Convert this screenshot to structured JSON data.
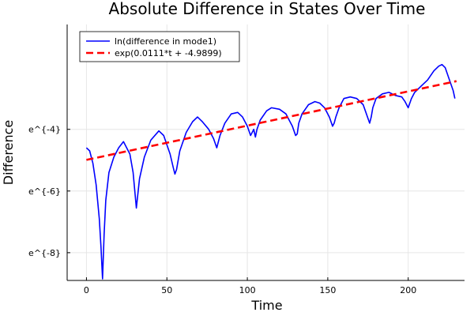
{
  "chart_data": {
    "type": "line",
    "title": "Absolute Difference in States Over Time",
    "xlabel": "Time",
    "ylabel": "Difference",
    "xlim": [
      -12,
      235
    ],
    "ylim": [
      -8.9,
      -0.6
    ],
    "xticks": [
      0,
      50,
      100,
      150,
      200
    ],
    "yticks": [
      -4,
      -6,
      -8
    ],
    "ytick_labels": [
      "e^{-4}",
      "e^{-6}",
      "e^{-8}"
    ],
    "grid": true,
    "legend_position": "top-left",
    "series": [
      {
        "name": "ln(difference in mode1)",
        "color": "#0000ff",
        "style": "solid",
        "x": [
          0,
          2,
          4,
          6,
          8,
          9,
          10,
          11,
          12,
          14,
          17,
          20,
          23,
          27,
          29,
          31,
          33,
          36,
          40,
          45,
          48,
          52,
          54,
          55,
          56,
          58,
          62,
          66,
          69,
          72,
          76,
          79,
          81,
          83,
          86,
          90,
          94,
          97,
          100,
          102,
          104,
          105,
          106,
          108,
          112,
          115,
          120,
          124,
          126,
          128,
          130,
          131,
          132,
          134,
          138,
          142,
          145,
          148,
          151,
          153,
          154,
          155,
          157,
          160,
          164,
          168,
          172,
          174,
          176,
          177,
          178,
          180,
          184,
          188,
          192,
          196,
          198,
          200,
          202,
          204,
          208,
          212,
          216,
          219,
          221,
          223,
          225,
          227,
          228,
          229
        ],
        "values": [
          -4.6,
          -4.7,
          -5.1,
          -5.8,
          -6.9,
          -7.8,
          -8.85,
          -7.4,
          -6.3,
          -5.4,
          -4.9,
          -4.6,
          -4.4,
          -4.8,
          -5.4,
          -6.55,
          -5.6,
          -4.9,
          -4.35,
          -4.05,
          -4.2,
          -4.8,
          -5.25,
          -5.45,
          -5.3,
          -4.7,
          -4.1,
          -3.75,
          -3.6,
          -3.75,
          -4.0,
          -4.3,
          -4.6,
          -4.2,
          -3.8,
          -3.5,
          -3.45,
          -3.6,
          -3.9,
          -4.2,
          -4.0,
          -4.25,
          -4.0,
          -3.7,
          -3.4,
          -3.3,
          -3.35,
          -3.5,
          -3.7,
          -3.9,
          -4.2,
          -4.15,
          -3.8,
          -3.5,
          -3.2,
          -3.1,
          -3.15,
          -3.3,
          -3.6,
          -3.9,
          -3.8,
          -3.6,
          -3.3,
          -3.0,
          -2.95,
          -3.0,
          -3.2,
          -3.5,
          -3.8,
          -3.6,
          -3.3,
          -3.0,
          -2.85,
          -2.8,
          -2.9,
          -2.95,
          -3.1,
          -3.3,
          -3.0,
          -2.8,
          -2.6,
          -2.4,
          -2.1,
          -1.95,
          -1.9,
          -2.0,
          -2.3,
          -2.6,
          -2.75,
          -3.0
        ]
      },
      {
        "name": "exp(0.0111*t + -4.9899)",
        "color": "#ff0000",
        "style": "dashed",
        "x": [
          0,
          230
        ],
        "values": [
          -4.9899,
          -2.4369
        ]
      }
    ]
  }
}
